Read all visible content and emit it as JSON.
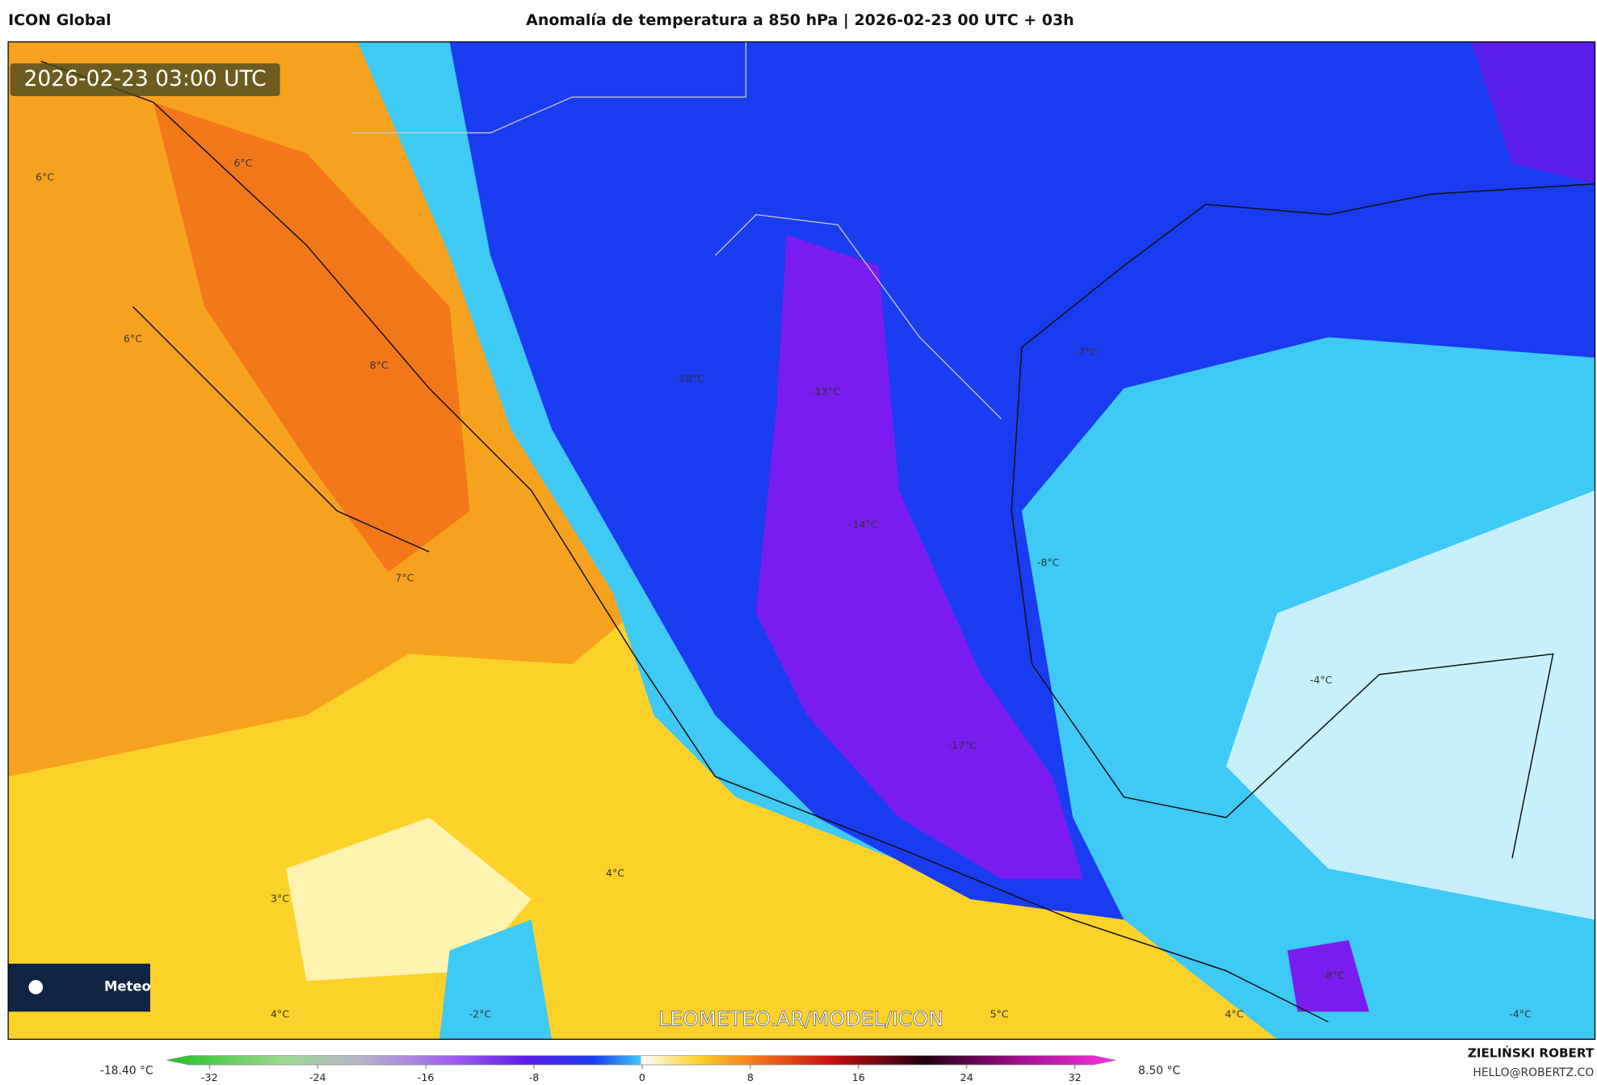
{
  "header": {
    "model": "ICON Global",
    "title": "Anomalía de temperatura a 850 hPa | 2026-02-23 00 UTC + 03h"
  },
  "map": {
    "timestamp": "2026-02-23 03:00 UTC",
    "watermark": "LEOMETEO.AR/MODEL/ICON",
    "logo_text": "Meteo",
    "labels": [
      "6°C",
      "6°C",
      "6°C",
      "8°C",
      "7°C",
      "-10°C",
      "-13°C",
      "-14°C",
      "-8°C",
      "-7°C",
      "-4°C",
      "-17°C",
      "4°C",
      "3°C",
      "4°C",
      "-2°C",
      "5°C",
      "4°C",
      "-4°C",
      "-8°C"
    ]
  },
  "colorbar": {
    "min_label": "-18.40 °C",
    "max_label": "8.50 °C",
    "range": [
      -32,
      32
    ],
    "ticks": [
      -32,
      -24,
      -16,
      -8,
      0,
      8,
      16,
      24,
      32
    ]
  },
  "footer": {
    "author": "ZIELIŃSKI ROBERT",
    "email": "HELLO@ROBERTZ.CO"
  }
}
